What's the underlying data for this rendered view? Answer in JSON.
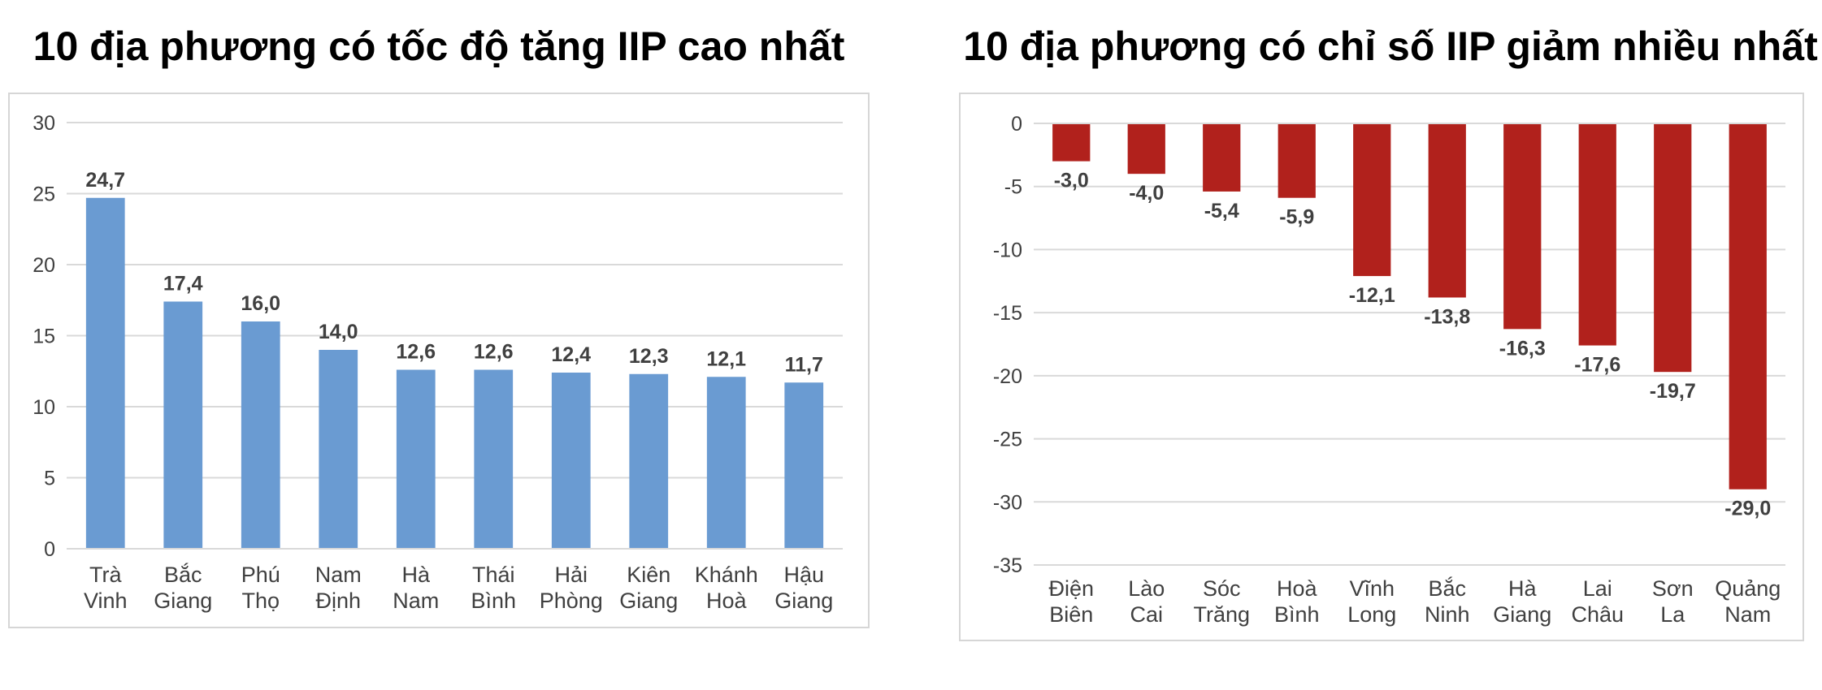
{
  "chart_data": [
    {
      "type": "bar",
      "title": "10 địa phương có tốc độ tăng IIP cao nhất",
      "categories": [
        [
          "Trà",
          "Vinh"
        ],
        [
          "Bắc",
          "Giang"
        ],
        [
          "Phú",
          "Thọ"
        ],
        [
          "Nam",
          "Định"
        ],
        [
          "Hà",
          "Nam"
        ],
        [
          "Thái",
          "Bình"
        ],
        [
          "Hải",
          "Phòng"
        ],
        [
          "Kiên",
          "Giang"
        ],
        [
          "Khánh",
          "Hoà"
        ],
        [
          "Hậu",
          "Giang"
        ]
      ],
      "values": [
        24.7,
        17.4,
        16.0,
        14.0,
        12.6,
        12.6,
        12.4,
        12.3,
        12.1,
        11.7
      ],
      "value_labels": [
        "24,7",
        "17,4",
        "16,0",
        "14,0",
        "12,6",
        "12,6",
        "12,4",
        "12,3",
        "12,1",
        "11,7"
      ],
      "ylim": [
        0,
        30
      ],
      "yticks": [
        "0",
        "5",
        "10",
        "15",
        "20",
        "25",
        "30"
      ],
      "color": "#6a9bd2",
      "grid": true
    },
    {
      "type": "bar",
      "title": "10 địa phương có chỉ số IIP giảm nhiều nhất",
      "categories": [
        [
          "Điện",
          "Biên"
        ],
        [
          "Lào",
          "Cai"
        ],
        [
          "Sóc",
          "Trăng"
        ],
        [
          "Hoà",
          "Bình"
        ],
        [
          "Vĩnh",
          "Long"
        ],
        [
          "Bắc",
          "Ninh"
        ],
        [
          "Hà",
          "Giang"
        ],
        [
          "Lai",
          "Châu"
        ],
        [
          "Sơn",
          "La"
        ],
        [
          "Quảng",
          "Nam"
        ]
      ],
      "values": [
        -3.0,
        -4.0,
        -5.4,
        -5.9,
        -12.1,
        -13.8,
        -16.3,
        -17.6,
        -19.7,
        -29.0
      ],
      "value_labels": [
        "-3,0",
        "-4,0",
        "-5,4",
        "-5,9",
        "-12,1",
        "-13,8",
        "-16,3",
        "-17,6",
        "-19,7",
        "-29,0"
      ],
      "ylim": [
        -35,
        0
      ],
      "yticks": [
        "0",
        "-5",
        "-10",
        "-15",
        "-20",
        "-25",
        "-30",
        "-35"
      ],
      "color": "#b1211c",
      "grid": true
    }
  ]
}
